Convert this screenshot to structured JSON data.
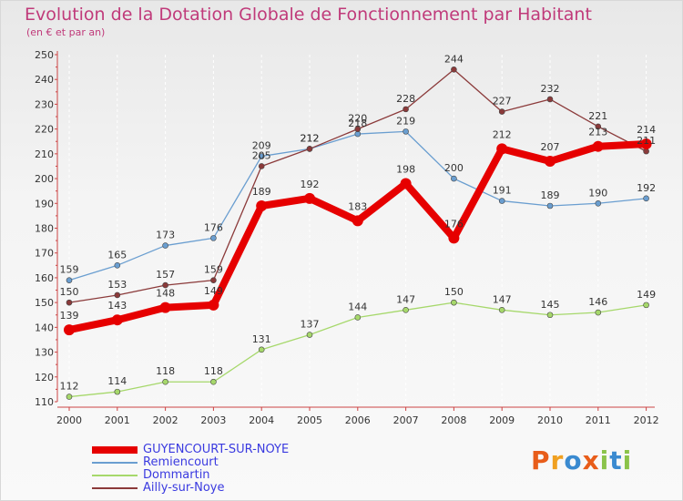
{
  "header": {
    "title": "Evolution de la Dotation Globale de Fonctionnement par Habitant",
    "subtitle": "(en € et par an)"
  },
  "logo": {
    "text": "Proxiti"
  },
  "chart_data": {
    "type": "line",
    "x": [
      "2000",
      "2001",
      "2002",
      "2003",
      "2004",
      "2005",
      "2006",
      "2007",
      "2008",
      "2009",
      "2010",
      "2011",
      "2012"
    ],
    "ylim": [
      110,
      250
    ],
    "yticks": [
      110,
      120,
      130,
      140,
      150,
      160,
      170,
      180,
      190,
      200,
      210,
      220,
      230,
      240,
      250
    ],
    "grid": "vertical-dashed",
    "legend_position": "bottom-left",
    "series": [
      {
        "name": "GUYENCOURT-SUR-NOYE",
        "color": "#e60000",
        "values": [
          139,
          143,
          148,
          149,
          189,
          192,
          183,
          198,
          176,
          212,
          207,
          213,
          214
        ]
      },
      {
        "name": "Remiencourt",
        "color": "#6a9ed0",
        "values": [
          159,
          165,
          173,
          176,
          209,
          212,
          218,
          219,
          200,
          191,
          189,
          190,
          192
        ]
      },
      {
        "name": "Dommartin",
        "color": "#a6d86b",
        "values": [
          112,
          114,
          118,
          118,
          131,
          137,
          144,
          147,
          150,
          147,
          145,
          146,
          149
        ]
      },
      {
        "name": "Ailly-sur-Noye",
        "color": "#8b3a3a",
        "values": [
          150,
          153,
          157,
          159,
          205,
          212,
          220,
          228,
          244,
          227,
          232,
          221,
          211
        ]
      }
    ]
  }
}
